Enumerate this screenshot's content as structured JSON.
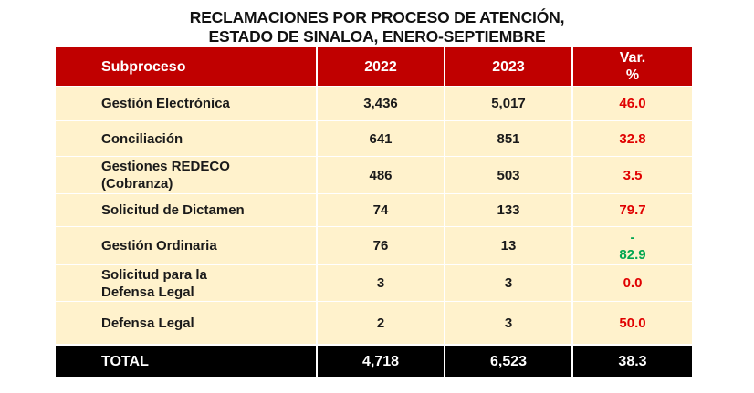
{
  "title": [
    "RECLAMACIONES POR PROCESO DE ATENCIÓN,",
    "ESTADO DE SINALOA, ENERO-SEPTIEMBRE"
  ],
  "colors": {
    "header_bg": "#c00000",
    "row_bg": "#fff2cc",
    "total_bg": "#000000",
    "positive": "#e00000",
    "negative": "#00a651"
  },
  "chart_data": {
    "type": "table",
    "title": "RECLAMACIONES POR PROCESO DE ATENCIÓN, ESTADO DE SINALOA, ENERO-SEPTIEMBRE",
    "columns": [
      "Subproceso",
      "2022",
      "2023",
      "Var. %"
    ],
    "header": {
      "subproceso": "Subproceso",
      "y2022": "2022",
      "y2023": "2023",
      "var1": "Var.",
      "var2": "%"
    },
    "rows": [
      {
        "subproceso": [
          "Gestión Electrónica"
        ],
        "y2022": "3,436",
        "y2023": "5,017",
        "var": [
          "46.0"
        ],
        "sign": "positive"
      },
      {
        "subproceso": [
          "Conciliación"
        ],
        "y2022": "641",
        "y2023": "851",
        "var": [
          "32.8"
        ],
        "sign": "positive"
      },
      {
        "subproceso": [
          "Gestiones REDECO",
          "(Cobranza)"
        ],
        "y2022": "486",
        "y2023": "503",
        "var": [
          "3.5"
        ],
        "sign": "positive"
      },
      {
        "subproceso": [
          "Solicitud de Dictamen"
        ],
        "y2022": "74",
        "y2023": "133",
        "var": [
          "79.7"
        ],
        "sign": "positive"
      },
      {
        "subproceso": [
          "Gestión Ordinaria"
        ],
        "y2022": "76",
        "y2023": "13",
        "var": [
          "-",
          "82.9"
        ],
        "sign": "negative"
      },
      {
        "subproceso": [
          "Solicitud para la",
          "Defensa Legal"
        ],
        "y2022": "3",
        "y2023": "3",
        "var": [
          "0.0"
        ],
        "sign": "positive"
      },
      {
        "subproceso": [
          "Defensa Legal"
        ],
        "y2022": "2",
        "y2023": "3",
        "var": [
          "50.0"
        ],
        "sign": "positive"
      }
    ],
    "total": {
      "label": "TOTAL",
      "y2022": "4,718",
      "y2023": "6,523",
      "var": "38.3"
    }
  }
}
